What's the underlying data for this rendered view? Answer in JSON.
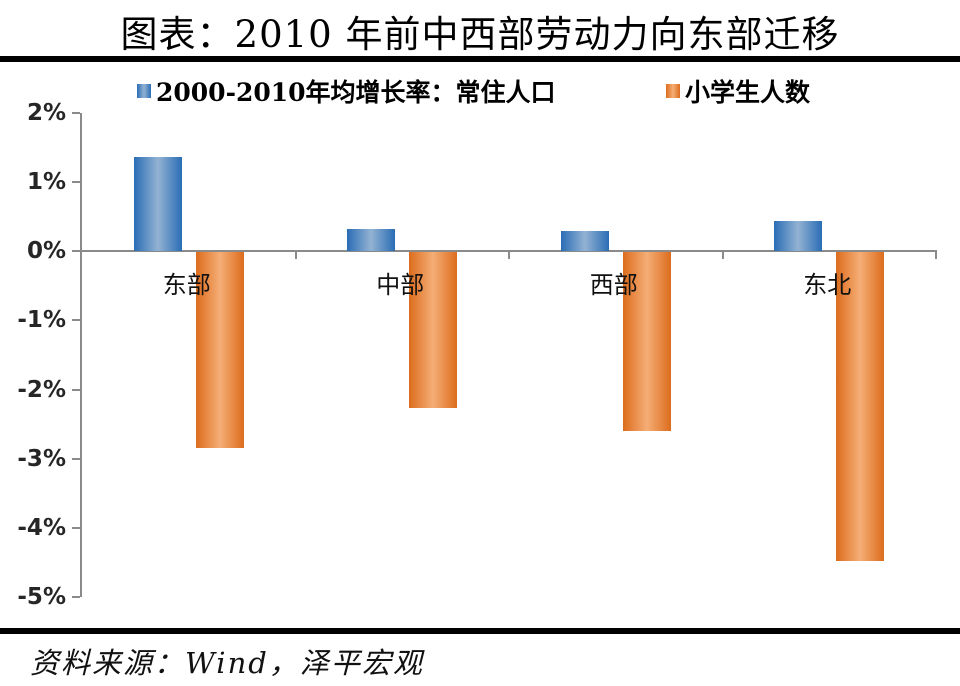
{
  "title": "图表：2010 年前中西部劳动力向东部迁移",
  "source_note": "资料来源：Wind，泽平宏观",
  "legend": [
    {
      "label": "2000-2010年均增长率：常住人口",
      "series_key": "resident-population"
    },
    {
      "label": "小学生人数",
      "series_key": "primary-students"
    }
  ],
  "chart_data": {
    "type": "bar",
    "categories": [
      "东部",
      "中部",
      "西部",
      "东北"
    ],
    "category_keys": [
      "east",
      "central",
      "west",
      "northeast"
    ],
    "series": [
      {
        "name": "2000-2010年均增长率：常住人口",
        "key": "resident-population",
        "values": [
          1.37,
          0.32,
          0.3,
          0.44
        ],
        "color_edge": "#2a6db5",
        "color_center": "#93b2d3"
      },
      {
        "name": "小学生人数",
        "key": "primary-students",
        "values": [
          -2.83,
          -2.25,
          -2.58,
          -4.47
        ],
        "color_edge": "#dc6c1d",
        "color_center": "#f5ae76"
      }
    ],
    "title": "图表：2010 年前中西部劳动力向东部迁移",
    "xlabel": "",
    "ylabel": "",
    "ylim": [
      -5,
      2
    ],
    "ytick_step": 1,
    "ytick_labels": [
      "2%",
      "1%",
      "0%",
      "-1%",
      "-2%",
      "-3%",
      "-4%",
      "-5%"
    ],
    "grid": false,
    "legend_position": "top"
  },
  "colors": {
    "axis": "#8a8a8a",
    "tick_label": "#262626",
    "rule": "#000000",
    "background": "#ffffff"
  }
}
